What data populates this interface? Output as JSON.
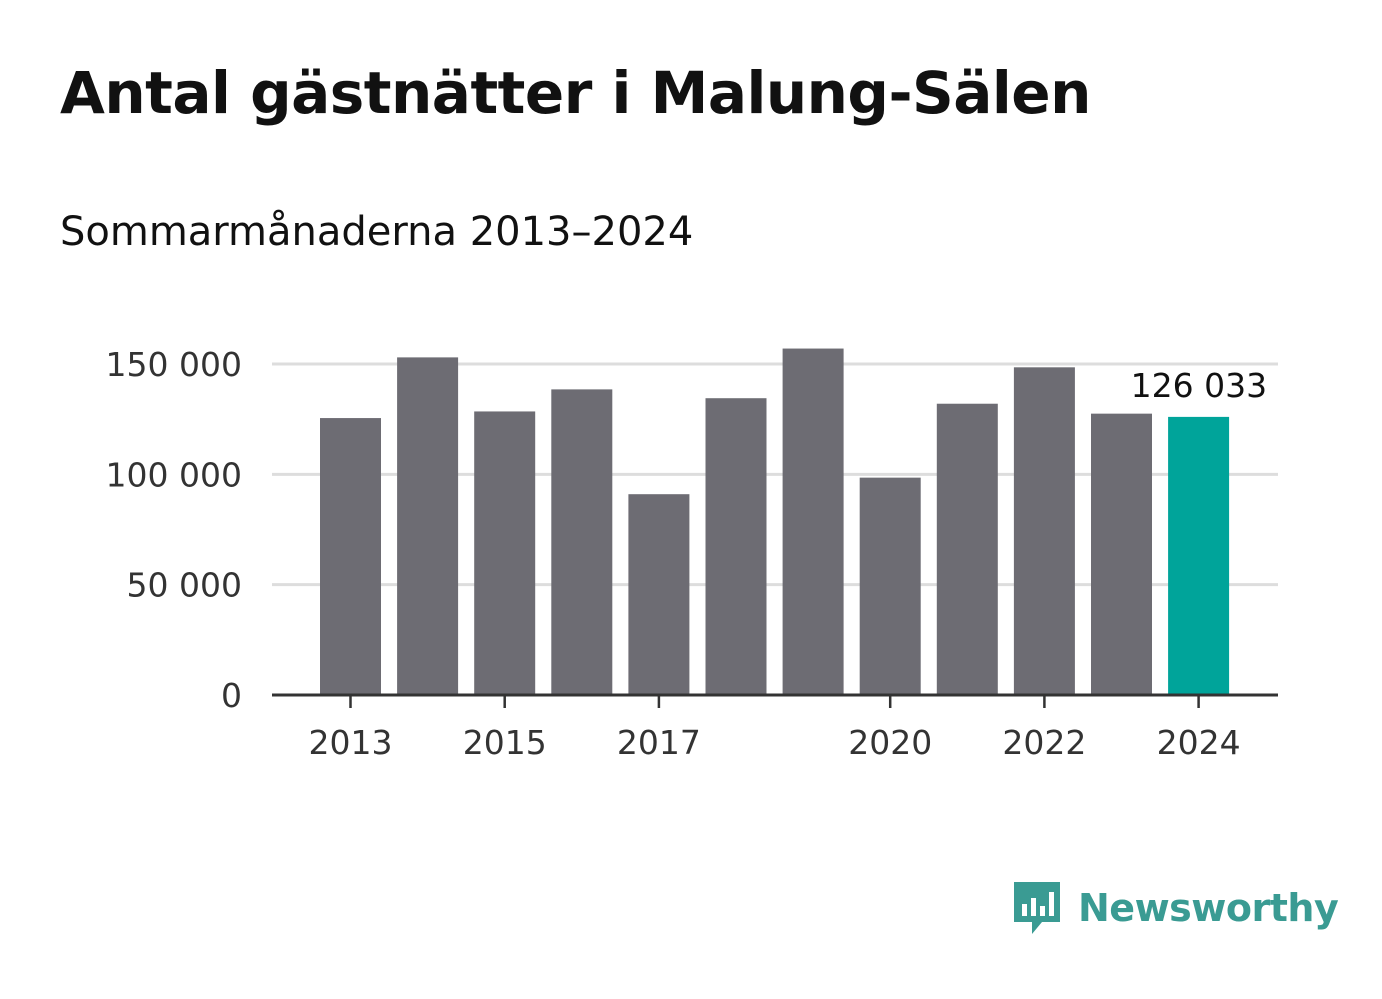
{
  "title": "Antal gästnätter i Malung-Sälen",
  "subtitle": "Sommarmånaderna 2013–2024",
  "brand": {
    "name": "Newsworthy",
    "color": "#3a9b93"
  },
  "colors": {
    "bar": "#6d6c73",
    "highlight": "#00a49a",
    "grid": "#dddddd",
    "axis": "#333333",
    "text": "#333333"
  },
  "chart_data": {
    "type": "bar",
    "categories": [
      "2013",
      "2014",
      "2015",
      "2016",
      "2017",
      "2018",
      "2019",
      "2020",
      "2021",
      "2022",
      "2023",
      "2024"
    ],
    "values": [
      125500,
      153000,
      128500,
      138500,
      91000,
      134500,
      157000,
      98500,
      132000,
      148500,
      127500,
      126033
    ],
    "highlight_index": 11,
    "x_tick_labels": [
      "2013",
      "2015",
      "2017",
      "2020",
      "2022",
      "2024"
    ],
    "y_ticks": [
      0,
      50000,
      100000,
      150000
    ],
    "y_tick_labels": [
      "0",
      "50 000",
      "100 000",
      "150 000"
    ],
    "ylim": [
      0,
      160000
    ],
    "grid": true,
    "annotation": {
      "category": "2024",
      "label": "126 033"
    },
    "title": "Antal gästnätter i Malung-Sälen",
    "subtitle": "Sommarmånaderna 2013–2024",
    "xlabel": "",
    "ylabel": ""
  }
}
